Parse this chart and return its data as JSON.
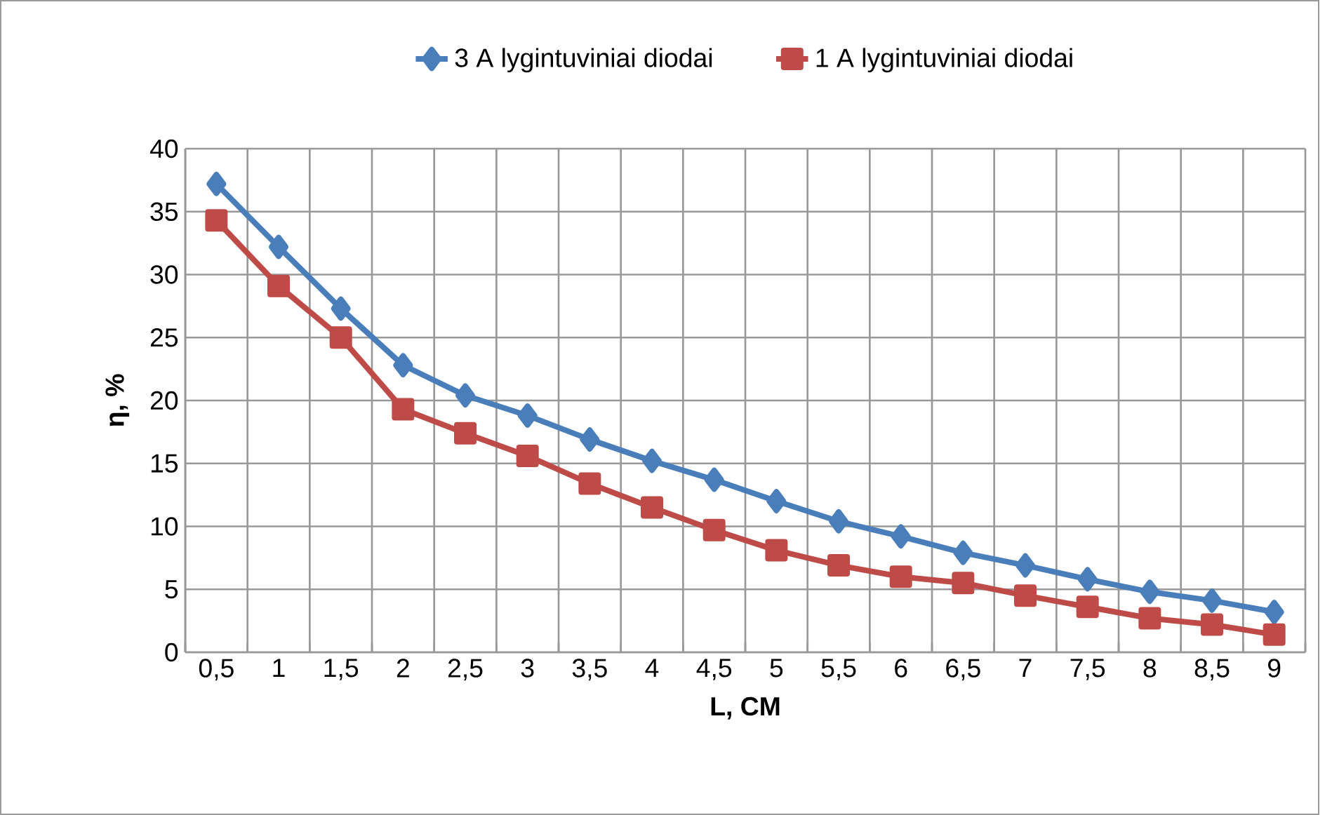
{
  "chart_data": {
    "type": "line",
    "xlabel": "L, CM",
    "ylabel": "η, %",
    "categories": [
      "0,5",
      "1",
      "1,5",
      "2",
      "2,5",
      "3",
      "3,5",
      "4",
      "4,5",
      "5",
      "5,5",
      "6",
      "6,5",
      "7",
      "7,5",
      "8",
      "8,5",
      "9"
    ],
    "series": [
      {
        "name": "3 A lygintuviniai diodai",
        "color": "#4a7ebb",
        "marker": "diamond",
        "values": [
          37.2,
          32.2,
          27.3,
          22.8,
          20.4,
          18.8,
          16.9,
          15.2,
          13.7,
          12.0,
          10.4,
          9.2,
          7.9,
          6.9,
          5.8,
          4.8,
          4.1,
          3.2
        ]
      },
      {
        "name": "1 A lygintuviniai diodai",
        "color": "#be4b48",
        "marker": "square",
        "values": [
          34.3,
          29.1,
          25.0,
          19.3,
          17.4,
          15.6,
          13.4,
          11.5,
          9.7,
          8.1,
          6.9,
          6.0,
          5.5,
          4.5,
          3.6,
          2.7,
          2.2,
          1.4
        ]
      }
    ],
    "ylim": [
      0,
      40
    ],
    "yticks": [
      0,
      5,
      10,
      15,
      20,
      25,
      30,
      35,
      40
    ],
    "grid": true,
    "legend": "top",
    "line_style": "solid"
  }
}
